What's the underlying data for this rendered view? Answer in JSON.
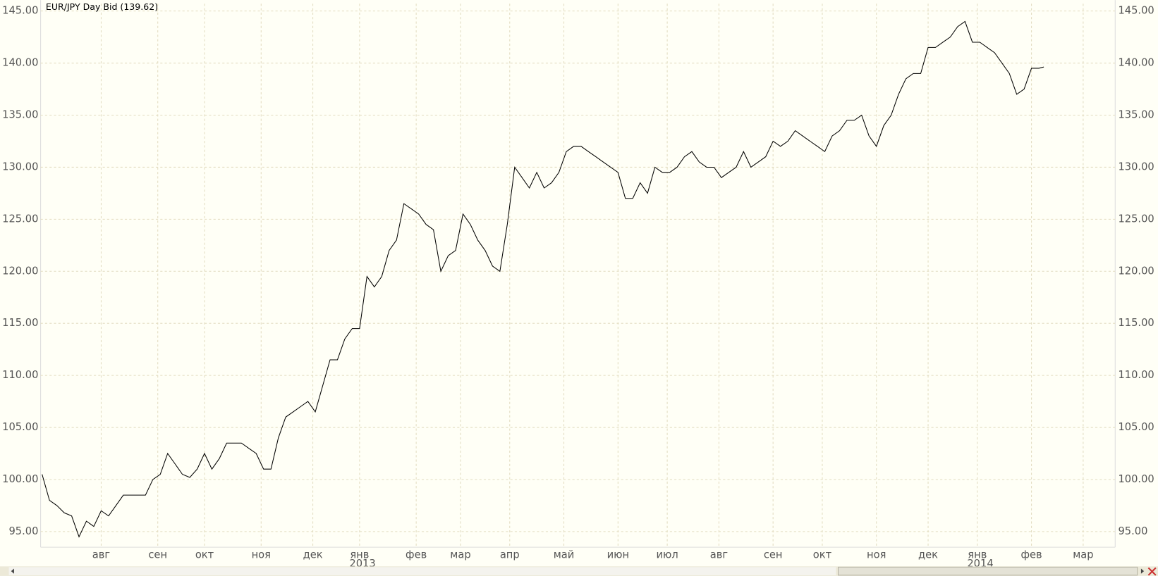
{
  "chart_data": {
    "type": "line",
    "title": "EUR/JPY Day Bid (139.62)",
    "series": [
      {
        "name": "EUR/JPY",
        "color": "#000000",
        "values": [
          100.5,
          98,
          97.5,
          96.8,
          96.5,
          94.5,
          96,
          95.5,
          97,
          96.5,
          97.5,
          98.5,
          98.5,
          98.5,
          98.5,
          100,
          100.5,
          102.5,
          101.5,
          100.5,
          100.2,
          101,
          102.5,
          101,
          102,
          103.5,
          103.5,
          103.5,
          103,
          102.5,
          101,
          101,
          104,
          106,
          106.5,
          107,
          107.5,
          106.5,
          109,
          111.5,
          111.5,
          113.5,
          114.5,
          114.5,
          119.5,
          118.5,
          119.5,
          122,
          123,
          126.5,
          126,
          125.5,
          124.5,
          124,
          120,
          121.5,
          122,
          125.5,
          124.5,
          123,
          122,
          120.5,
          120,
          124.5,
          130,
          129,
          128,
          129.5,
          128,
          128.5,
          129.5,
          131.5,
          132,
          132,
          131.5,
          131,
          130.5,
          130,
          129.5,
          127,
          127,
          128.5,
          127.5,
          130,
          129.5,
          129.5,
          130,
          131,
          131.5,
          130.5,
          130,
          130,
          129,
          129.5,
          130,
          131.5,
          130,
          130.5,
          131,
          132.5,
          132,
          132.5,
          133.5,
          133,
          132.5,
          132,
          131.5,
          133,
          133.5,
          134.5,
          134.5,
          135,
          133,
          132,
          134,
          135,
          137,
          138.5,
          139,
          139,
          141.5,
          141.5,
          142,
          142.5,
          143.5,
          144,
          142,
          142,
          141.5,
          141,
          140,
          139,
          137,
          137.5,
          139.5,
          139.5,
          139.62
        ]
      }
    ],
    "x": [
      0,
      3,
      6,
      9,
      12,
      15,
      18,
      21,
      24,
      27,
      30,
      33,
      36,
      39,
      42,
      45,
      48,
      51,
      54,
      57,
      60,
      63,
      66,
      69,
      72,
      75,
      78,
      81,
      84,
      87,
      90,
      93,
      96,
      99,
      102,
      105,
      108,
      111,
      114,
      117,
      120,
      123,
      126,
      129,
      132,
      135,
      138,
      141,
      144,
      147,
      150,
      153,
      156,
      159,
      162,
      165,
      168,
      171,
      174,
      177,
      180,
      183,
      186,
      189,
      192,
      195,
      198,
      201,
      204,
      207,
      210,
      213,
      216,
      219,
      222,
      225,
      228,
      231,
      234,
      237,
      240,
      243,
      246,
      249,
      252,
      255,
      258,
      261,
      264,
      267,
      270,
      273,
      276,
      279,
      282,
      285,
      288,
      291,
      294,
      297,
      300,
      303,
      306,
      309,
      312,
      315,
      318,
      321,
      324,
      327,
      330,
      333,
      336,
      339,
      342,
      345,
      348,
      351,
      354,
      357,
      360,
      363,
      366,
      369,
      372,
      375,
      378,
      381,
      384,
      387,
      390,
      393,
      396,
      399,
      402,
      405,
      407
    ],
    "xlim": [
      0,
      436
    ],
    "xticks": [
      {
        "value": 24,
        "label": "авг"
      },
      {
        "value": 47,
        "label": "сен"
      },
      {
        "value": 66,
        "label": "окт"
      },
      {
        "value": 89,
        "label": "ноя"
      },
      {
        "value": 110,
        "label": "дек"
      },
      {
        "value": 129,
        "label": "янв"
      },
      {
        "value": 152,
        "label": "фев"
      },
      {
        "value": 170,
        "label": "мар"
      },
      {
        "value": 190,
        "label": "апр"
      },
      {
        "value": 212,
        "label": "май"
      },
      {
        "value": 234,
        "label": "июн"
      },
      {
        "value": 254,
        "label": "июл"
      },
      {
        "value": 275,
        "label": "авг"
      },
      {
        "value": 297,
        "label": "сен"
      },
      {
        "value": 317,
        "label": "окт"
      },
      {
        "value": 339,
        "label": "ноя"
      },
      {
        "value": 360,
        "label": "дек"
      },
      {
        "value": 380,
        "label": "янв"
      },
      {
        "value": 402,
        "label": "фев"
      },
      {
        "value": 423,
        "label": "мар"
      }
    ],
    "year_ticks": [
      {
        "value": 129,
        "label": "2013"
      },
      {
        "value": 380,
        "label": "2014"
      }
    ],
    "ylim": [
      93.5,
      145.7
    ],
    "yticks": [
      {
        "value": 95,
        "label": "95.00"
      },
      {
        "value": 100,
        "label": "100.00"
      },
      {
        "value": 105,
        "label": "105.00"
      },
      {
        "value": 110,
        "label": "110.00"
      },
      {
        "value": 115,
        "label": "115.00"
      },
      {
        "value": 120,
        "label": "120.00"
      },
      {
        "value": 125,
        "label": "125.00"
      },
      {
        "value": 130,
        "label": "130.00"
      },
      {
        "value": 135,
        "label": "135.00"
      },
      {
        "value": 140,
        "label": "140.00"
      },
      {
        "value": 145,
        "label": "145.00"
      }
    ],
    "grid": true
  }
}
